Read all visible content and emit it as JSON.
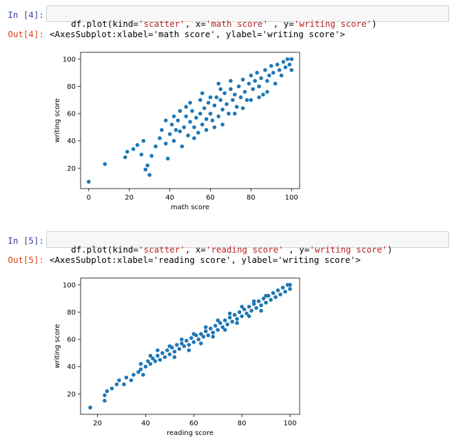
{
  "cells": [
    {
      "in_prompt": "In [4]:",
      "code": {
        "pre": "df.plot(kind=",
        "kind": "'scatter'",
        "mid1": ", x=",
        "x": "'math score'",
        "mid2": " , y=",
        "y": "'writing score'",
        "post": ")"
      },
      "out_prompt": "Out[4]:",
      "out_text": "<AxesSubplot:xlabel='math score', ylabel='writing score'>"
    },
    {
      "in_prompt": "In [5]:",
      "code": {
        "pre": "df.plot(kind=",
        "kind": "'scatter'",
        "mid1": ", x=",
        "x": "'reading score'",
        "mid2": " , y=",
        "y": "'writing score'",
        "post": ")"
      },
      "out_prompt": "Out[5]:",
      "out_text": "<AxesSubplot:xlabel='reading score', ylabel='writing score'>"
    }
  ],
  "colors": {
    "points": "#1f77b4"
  },
  "chart_data": [
    {
      "type": "scatter",
      "xlabel": "math score",
      "ylabel": "writing score",
      "xlim": [
        -4,
        104
      ],
      "ylim": [
        5,
        105
      ],
      "xticks": [
        0,
        20,
        40,
        60,
        80,
        100
      ],
      "yticks": [
        20,
        40,
        60,
        80,
        100
      ],
      "points": [
        [
          0,
          10
        ],
        [
          8,
          23
        ],
        [
          18,
          28
        ],
        [
          19,
          32
        ],
        [
          22,
          34
        ],
        [
          24,
          37
        ],
        [
          26,
          30
        ],
        [
          27,
          40
        ],
        [
          28,
          19
        ],
        [
          29,
          22
        ],
        [
          30,
          15
        ],
        [
          31,
          29
        ],
        [
          33,
          36
        ],
        [
          35,
          42
        ],
        [
          36,
          48
        ],
        [
          38,
          38
        ],
        [
          39,
          27
        ],
        [
          40,
          45
        ],
        [
          41,
          52
        ],
        [
          42,
          40
        ],
        [
          43,
          48
        ],
        [
          44,
          55
        ],
        [
          45,
          47
        ],
        [
          46,
          36
        ],
        [
          47,
          50
        ],
        [
          48,
          58
        ],
        [
          49,
          44
        ],
        [
          50,
          54
        ],
        [
          51,
          62
        ],
        [
          52,
          50
        ],
        [
          53,
          57
        ],
        [
          54,
          46
        ],
        [
          55,
          60
        ],
        [
          56,
          52
        ],
        [
          57,
          64
        ],
        [
          58,
          56
        ],
        [
          59,
          68
        ],
        [
          60,
          60
        ],
        [
          61,
          55
        ],
        [
          62,
          66
        ],
        [
          63,
          72
        ],
        [
          64,
          58
        ],
        [
          65,
          70
        ],
        [
          66,
          63
        ],
        [
          67,
          75
        ],
        [
          68,
          67
        ],
        [
          69,
          60
        ],
        [
          70,
          78
        ],
        [
          71,
          70
        ],
        [
          72,
          74
        ],
        [
          73,
          65
        ],
        [
          74,
          80
        ],
        [
          75,
          72
        ],
        [
          76,
          85
        ],
        [
          77,
          76
        ],
        [
          78,
          70
        ],
        [
          79,
          82
        ],
        [
          80,
          88
        ],
        [
          81,
          78
        ],
        [
          82,
          84
        ],
        [
          83,
          90
        ],
        [
          84,
          80
        ],
        [
          85,
          86
        ],
        [
          86,
          74
        ],
        [
          87,
          92
        ],
        [
          88,
          84
        ],
        [
          89,
          88
        ],
        [
          90,
          95
        ],
        [
          91,
          90
        ],
        [
          92,
          82
        ],
        [
          93,
          96
        ],
        [
          94,
          92
        ],
        [
          95,
          88
        ],
        [
          96,
          98
        ],
        [
          97,
          94
        ],
        [
          98,
          100
        ],
        [
          99,
          96
        ],
        [
          100,
          100
        ],
        [
          100,
          92
        ],
        [
          45,
          62
        ],
        [
          50,
          68
        ],
        [
          55,
          70
        ],
        [
          60,
          72
        ],
        [
          65,
          78
        ],
        [
          70,
          84
        ],
        [
          52,
          42
        ],
        [
          58,
          48
        ],
        [
          62,
          50
        ],
        [
          66,
          52
        ],
        [
          72,
          60
        ],
        [
          76,
          64
        ],
        [
          80,
          70
        ],
        [
          84,
          72
        ],
        [
          88,
          76
        ],
        [
          38,
          55
        ],
        [
          42,
          58
        ],
        [
          48,
          65
        ],
        [
          56,
          75
        ],
        [
          64,
          82
        ]
      ]
    },
    {
      "type": "scatter",
      "xlabel": "reading score",
      "ylabel": "writing score",
      "xlim": [
        13,
        104
      ],
      "ylim": [
        5,
        105
      ],
      "xticks": [
        20,
        40,
        60,
        80,
        100
      ],
      "yticks": [
        20,
        40,
        60,
        80,
        100
      ],
      "points": [
        [
          17,
          10
        ],
        [
          23,
          15
        ],
        [
          23,
          19
        ],
        [
          24,
          22
        ],
        [
          26,
          24
        ],
        [
          28,
          27
        ],
        [
          29,
          30
        ],
        [
          31,
          27
        ],
        [
          32,
          32
        ],
        [
          34,
          30
        ],
        [
          35,
          34
        ],
        [
          37,
          36
        ],
        [
          38,
          38
        ],
        [
          39,
          34
        ],
        [
          40,
          40
        ],
        [
          41,
          44
        ],
        [
          42,
          42
        ],
        [
          43,
          46
        ],
        [
          44,
          44
        ],
        [
          45,
          48
        ],
        [
          46,
          45
        ],
        [
          47,
          50
        ],
        [
          48,
          47
        ],
        [
          49,
          52
        ],
        [
          50,
          49
        ],
        [
          51,
          54
        ],
        [
          52,
          51
        ],
        [
          53,
          56
        ],
        [
          54,
          53
        ],
        [
          55,
          57
        ],
        [
          56,
          55
        ],
        [
          57,
          59
        ],
        [
          58,
          56
        ],
        [
          59,
          61
        ],
        [
          60,
          58
        ],
        [
          61,
          63
        ],
        [
          62,
          60
        ],
        [
          63,
          64
        ],
        [
          64,
          62
        ],
        [
          65,
          66
        ],
        [
          66,
          63
        ],
        [
          67,
          68
        ],
        [
          68,
          65
        ],
        [
          69,
          70
        ],
        [
          70,
          67
        ],
        [
          71,
          72
        ],
        [
          72,
          69
        ],
        [
          73,
          74
        ],
        [
          74,
          71
        ],
        [
          75,
          76
        ],
        [
          76,
          73
        ],
        [
          77,
          78
        ],
        [
          78,
          75
        ],
        [
          79,
          80
        ],
        [
          80,
          77
        ],
        [
          81,
          82
        ],
        [
          82,
          79
        ],
        [
          83,
          84
        ],
        [
          84,
          81
        ],
        [
          85,
          86
        ],
        [
          86,
          83
        ],
        [
          87,
          88
        ],
        [
          88,
          85
        ],
        [
          89,
          90
        ],
        [
          90,
          87
        ],
        [
          91,
          92
        ],
        [
          92,
          89
        ],
        [
          93,
          94
        ],
        [
          94,
          91
        ],
        [
          95,
          96
        ],
        [
          96,
          93
        ],
        [
          97,
          98
        ],
        [
          98,
          95
        ],
        [
          99,
          100
        ],
        [
          100,
          97
        ],
        [
          100,
          100
        ],
        [
          45,
          52
        ],
        [
          50,
          55
        ],
        [
          55,
          60
        ],
        [
          60,
          64
        ],
        [
          65,
          69
        ],
        [
          70,
          74
        ],
        [
          75,
          79
        ],
        [
          80,
          84
        ],
        [
          85,
          88
        ],
        [
          90,
          92
        ],
        [
          52,
          47
        ],
        [
          58,
          52
        ],
        [
          63,
          57
        ],
        [
          68,
          62
        ],
        [
          73,
          67
        ],
        [
          78,
          72
        ],
        [
          83,
          77
        ],
        [
          88,
          81
        ],
        [
          38,
          42
        ],
        [
          42,
          48
        ]
      ]
    }
  ]
}
